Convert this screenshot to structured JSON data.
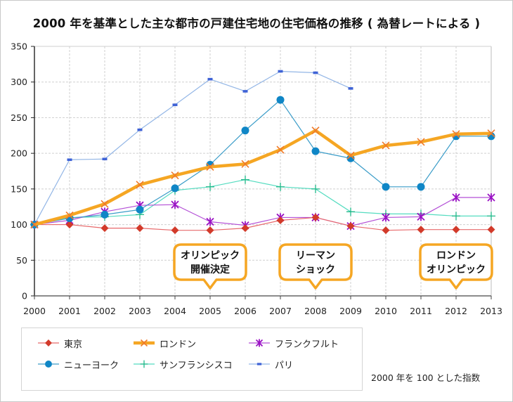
{
  "chart_data": {
    "type": "line",
    "title": "2000 年を基準とした主な都市の戸建住宅地の住宅価格の推移 ( 為替レートによる )",
    "xlabel": "",
    "ylabel": "",
    "x": [
      2000,
      2001,
      2002,
      2003,
      2004,
      2005,
      2006,
      2007,
      2008,
      2009,
      2010,
      2011,
      2012,
      2013
    ],
    "x_tick_labels": [
      "2000",
      "2001",
      "2002",
      "2003",
      "2004",
      "2005",
      "2006",
      "2007",
      "2008",
      "2009",
      "2010",
      "2011",
      "2012",
      "2013"
    ],
    "ylim": [
      0,
      350
    ],
    "y_ticks": [
      0,
      50,
      100,
      150,
      200,
      250,
      300,
      350
    ],
    "y_tick_labels": [
      "0",
      "50",
      "100",
      "150",
      "200",
      "250",
      "300",
      "350"
    ],
    "grid": true,
    "legend_position": "bottom-left",
    "series": [
      {
        "name": "東京",
        "key": "tokyo",
        "marker": "diamond",
        "line_color": "#e8696b",
        "marker_color": "#d23a2a",
        "values": [
          100,
          100,
          95,
          95,
          92,
          92,
          95,
          106,
          110,
          98,
          92,
          93,
          93,
          93
        ]
      },
      {
        "name": "ロンドン",
        "key": "london",
        "marker": "x",
        "line_color": "#f5a623",
        "marker_color": "#f07a2a",
        "values": [
          100,
          113,
          129,
          156,
          169,
          181,
          185,
          205,
          232,
          197,
          211,
          216,
          227,
          228
        ]
      },
      {
        "name": "フランクフルト",
        "key": "frankfurt",
        "marker": "asterisk",
        "line_color": "#b34fd6",
        "marker_color": "#9a12c4",
        "values": [
          100,
          106,
          118,
          127,
          128,
          104,
          99,
          110,
          110,
          98,
          110,
          111,
          138,
          138
        ]
      },
      {
        "name": "ニューヨーク",
        "key": "newyork",
        "marker": "circle",
        "line_color": "#3a9cc8",
        "marker_color": "#0f86c6",
        "values": [
          100,
          109,
          114,
          121,
          151,
          184,
          232,
          275,
          203,
          193,
          153,
          153,
          224,
          224
        ]
      },
      {
        "name": "サンフランシスコ",
        "key": "sanfrancisco",
        "marker": "plus",
        "line_color": "#55dcc0",
        "marker_color": "#1fb889",
        "values": [
          100,
          110,
          111,
          114,
          148,
          153,
          163,
          153,
          150,
          118,
          115,
          115,
          112,
          112
        ]
      },
      {
        "name": "パリ",
        "key": "paris",
        "marker": "dash",
        "line_color": "#93b6e6",
        "marker_color": "#3e62d6",
        "values": [
          100,
          191,
          192,
          233,
          268,
          304,
          287,
          315,
          313,
          291,
          null,
          null,
          null,
          null
        ]
      }
    ],
    "annotations": [
      {
        "x": 2005,
        "lines": [
          "オリンピック",
          "開催決定"
        ]
      },
      {
        "x": 2008,
        "lines": [
          "リーマン",
          "ショック"
        ]
      },
      {
        "x": 2012,
        "lines": [
          "ロンドン",
          "オリンピック"
        ]
      }
    ],
    "footnote": "2000 年を 100 とした指数"
  }
}
